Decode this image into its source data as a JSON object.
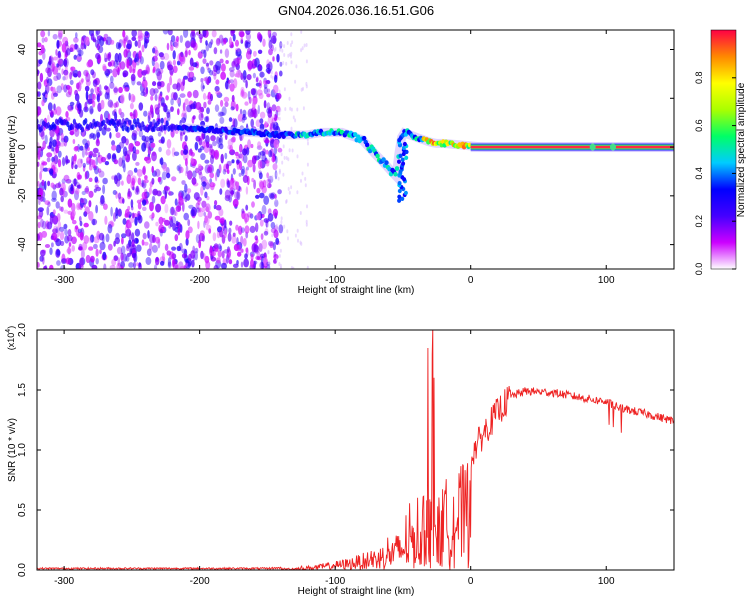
{
  "figure": {
    "title": "GN04.2026.036.16.51.G06"
  },
  "chart_data": [
    {
      "type": "heatmap",
      "name": "spectrogram",
      "xlabel": "Height of straight line (km)",
      "ylabel": "Frequency (Hz)",
      "xlim": [
        -320,
        150
      ],
      "ylim": [
        -50,
        48
      ],
      "xticks": [
        -300,
        -200,
        -100,
        0,
        100
      ],
      "yticks": [
        -40,
        -20,
        0,
        20,
        40
      ],
      "ridge": {
        "x": [
          -215,
          -190,
          -160,
          -140,
          -120,
          -110,
          -95,
          -80,
          -72,
          -65,
          -60,
          -55,
          -52,
          -50,
          -45,
          -40,
          -35,
          -30,
          -25,
          -20,
          -10,
          0,
          10,
          50,
          100,
          150
        ],
        "y": [
          8,
          7,
          6,
          5,
          5,
          6,
          6,
          3,
          -2,
          -6,
          -9,
          -12,
          2,
          6,
          5,
          4,
          3,
          2,
          1.5,
          1.5,
          1,
          0.5,
          0,
          0,
          0,
          0
        ]
      },
      "colorbar": {
        "label": "Normalized spectral amplitude",
        "range": [
          0,
          1
        ],
        "ticks": [
          "0.0",
          "0.2",
          "0.4",
          "0.6",
          "0.8"
        ],
        "tick_values": [
          0,
          0.2,
          0.4,
          0.6,
          0.8
        ],
        "stops": [
          "#ffffff",
          "#cc00ff",
          "#4400ff",
          "#0000ff",
          "#00ccff",
          "#00ff66",
          "#aaff00",
          "#ffff00",
          "#ff8800",
          "#ff0044"
        ]
      }
    },
    {
      "type": "line",
      "name": "snr",
      "xlabel": "Height of straight line (km)",
      "ylabel": "SNR (10 * v/v)",
      "y_exponent_label": "(x10",
      "y_exponent": "4",
      "y_exponent_close": ")",
      "xlim": [
        -320,
        150
      ],
      "ylim": [
        0,
        2.0
      ],
      "xticks": [
        -300,
        -200,
        -100,
        0,
        100
      ],
      "yticks": [
        0.0,
        0.5,
        1.0,
        1.5,
        2.0
      ],
      "ytick_labels": [
        "0.0",
        "0.5",
        "1.0",
        "1.5",
        "2.0"
      ],
      "color": "#ee2222",
      "envelope": {
        "x": [
          -320,
          -150,
          -130,
          -110,
          -90,
          -70,
          -60,
          -50,
          -45,
          -40,
          -35,
          -30,
          -25,
          -20,
          -10,
          0,
          10,
          20,
          30,
          40,
          60,
          80,
          100,
          110,
          130,
          150
        ],
        "y": [
          0.01,
          0.01,
          0.02,
          0.05,
          0.1,
          0.18,
          0.25,
          0.35,
          0.45,
          0.5,
          0.62,
          0.7,
          0.55,
          0.75,
          0.85,
          0.95,
          1.15,
          1.32,
          1.45,
          1.49,
          1.48,
          1.44,
          1.4,
          1.35,
          1.3,
          1.24
        ]
      }
    }
  ]
}
